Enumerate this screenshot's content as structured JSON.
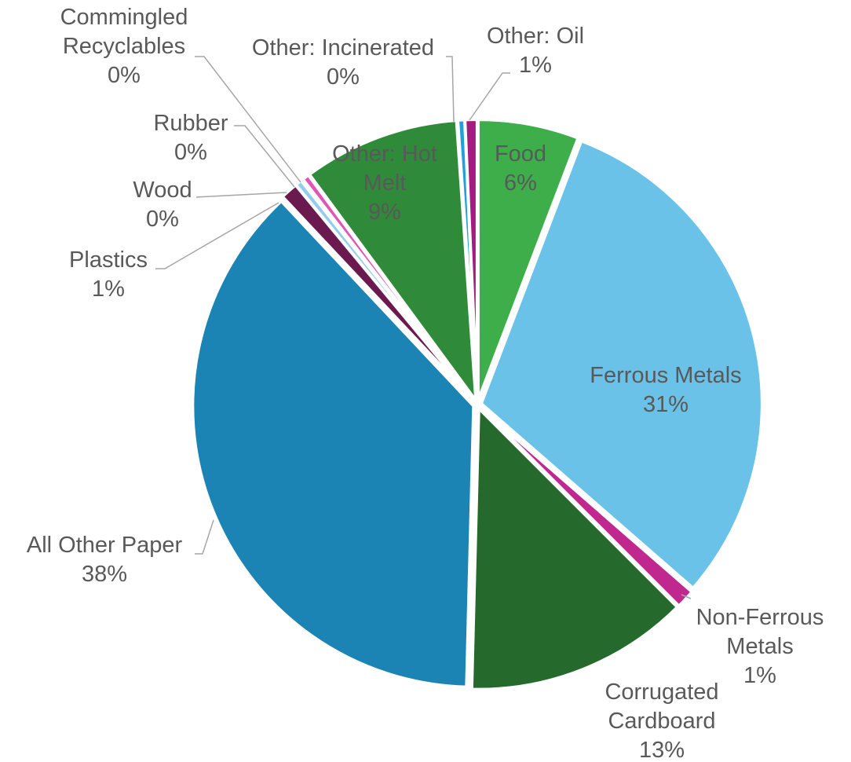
{
  "chart_data": {
    "type": "pie",
    "categories": [
      "Food",
      "Ferrous Metals",
      "Non-Ferrous Metals",
      "Corrugated Cardboard",
      "All Other Paper",
      "Plastics",
      "Wood",
      "Rubber",
      "Commingled Recyclables",
      "Other: Hot Melt",
      "Other: Incinerated",
      "Other: Oil"
    ],
    "values": [
      5.8,
      30.6,
      1.1,
      12.9,
      37.6,
      1.0,
      0.4,
      0.1,
      0.4,
      9.0,
      0.4,
      0.7
    ],
    "value_labels": [
      "6%",
      "31%",
      "1%",
      "13%",
      "38%",
      "1%",
      "0%",
      "0%",
      "0%",
      "9%",
      "0%",
      "1%"
    ],
    "colors": [
      "#3dae4a",
      "#6bc2e8",
      "#c0288f",
      "#256a2c",
      "#1c84b4",
      "#6a1a4e",
      "#93cdeb",
      "#d63aa6",
      "#e055b5",
      "#2f8a3a",
      "#23a0dc",
      "#a51c7e"
    ]
  }
}
